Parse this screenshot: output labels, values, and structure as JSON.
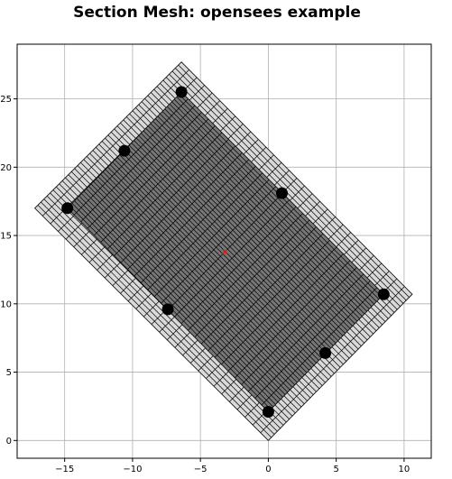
{
  "chart_data": {
    "type": "scatter",
    "title": "Section Mesh: opensees example",
    "xlabel": "",
    "ylabel": "",
    "xlim": [
      -18.5,
      12
    ],
    "ylim": [
      -1.3,
      29
    ],
    "xticks": [
      -15,
      -10,
      -5,
      0,
      5,
      10
    ],
    "yticks": [
      0,
      5,
      10,
      15,
      20,
      25
    ],
    "xtick_labels": [
      "−15",
      "−10",
      "−5",
      "0",
      "5",
      "10"
    ],
    "ytick_labels": [
      "0",
      "5",
      "10",
      "15",
      "20",
      "25"
    ],
    "grid": true,
    "outer_patch": {
      "corners": [
        [
          -17.2,
          17.0
        ],
        [
          -6.4,
          27.7
        ],
        [
          10.6,
          10.7
        ],
        [
          0.0,
          0.0
        ]
      ],
      "fill": "#d9d9d9",
      "u_divisions": 30,
      "v_divisions": 48
    },
    "core_patch": {
      "corners": [
        [
          -14.8,
          17.0
        ],
        [
          -6.4,
          25.5
        ],
        [
          8.5,
          10.7
        ],
        [
          0.0,
          2.1
        ]
      ],
      "fill": "#777777",
      "u_divisions": 30,
      "v_divisions": 48
    },
    "rebars": {
      "name": "rebar",
      "color": "#000000",
      "points": [
        {
          "x": -6.4,
          "y": 25.5
        },
        {
          "x": -10.6,
          "y": 21.2
        },
        {
          "x": -14.8,
          "y": 17.0
        },
        {
          "x": 1.0,
          "y": 18.1
        },
        {
          "x": -7.4,
          "y": 9.6
        },
        {
          "x": 8.5,
          "y": 10.7
        },
        {
          "x": 4.2,
          "y": 6.4
        },
        {
          "x": 0.0,
          "y": 2.1
        }
      ]
    },
    "centroid": {
      "x": -3.2,
      "y": 13.8,
      "color": "#cc2222",
      "marker": "x"
    }
  }
}
